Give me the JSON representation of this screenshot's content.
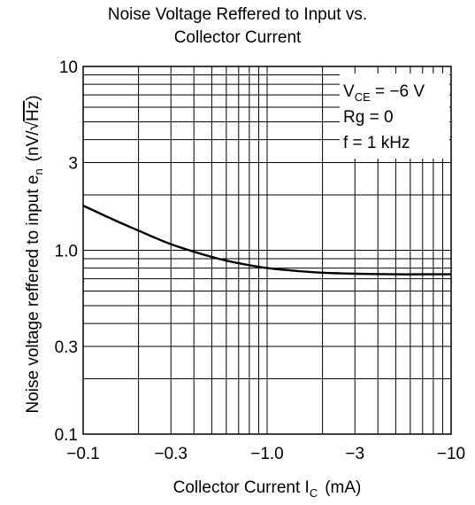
{
  "chart_data": {
    "type": "line",
    "title": [
      "Noise Voltage Reffered to Input vs.",
      "Collector Current"
    ],
    "xlabel": {
      "main": "Collector Current  I",
      "sub": "C",
      "unit": "(mA)"
    },
    "ylabel": {
      "main": "Noise voltage reffered to input  e",
      "sub": "n",
      "unit_pre": "(nV/√",
      "unit_over": "Hz",
      "unit_post": ")"
    },
    "x_scale": "log",
    "y_scale": "log",
    "xlim": [
      -0.1,
      -10
    ],
    "ylim": [
      0.1,
      10
    ],
    "x_ticks": [
      {
        "value": -0.1,
        "label": "−0.1"
      },
      {
        "value": -0.3,
        "label": "−0.3"
      },
      {
        "value": -1.0,
        "label": "−1.0"
      },
      {
        "value": -3,
        "label": "−3"
      },
      {
        "value": -10,
        "label": "−10"
      }
    ],
    "y_ticks": [
      {
        "value": 0.1,
        "label": "0.1"
      },
      {
        "value": 0.3,
        "label": "0.3"
      },
      {
        "value": 1.0,
        "label": "1.0"
      },
      {
        "value": 3,
        "label": "3"
      },
      {
        "value": 10,
        "label": "10"
      }
    ],
    "grid": true,
    "annotations": [
      {
        "main": "V",
        "sub": "CE",
        "rest": " = −6 V"
      },
      {
        "main": "Rg = 0"
      },
      {
        "main": "f = 1 kHz"
      }
    ],
    "series": [
      {
        "x": [
          -0.1,
          -0.15,
          -0.2,
          -0.3,
          -0.5,
          -0.7,
          -1.0,
          -1.5,
          -2,
          -3,
          -5,
          -7,
          -10
        ],
        "y": [
          1.75,
          1.45,
          1.28,
          1.08,
          0.92,
          0.85,
          0.8,
          0.77,
          0.755,
          0.745,
          0.74,
          0.74,
          0.74
        ]
      }
    ]
  }
}
